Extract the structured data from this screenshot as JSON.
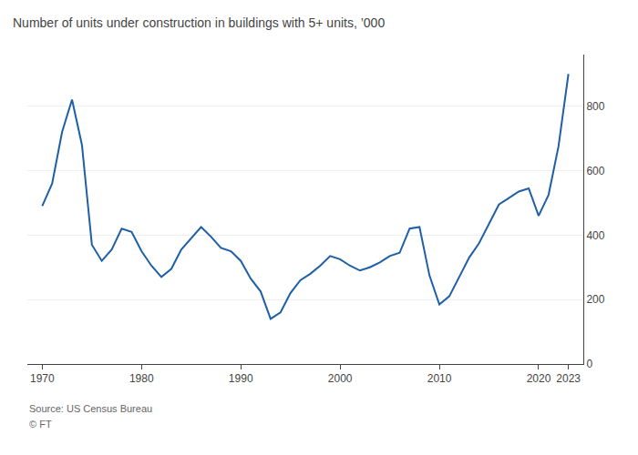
{
  "chart_data": {
    "type": "line",
    "title": "Number of units under construction in buildings with 5+ units, ’000",
    "annotations": [
      "Source: US Census Bureau",
      "© FT"
    ],
    "x": [
      1970,
      1971,
      1972,
      1973,
      1974,
      1975,
      1976,
      1977,
      1978,
      1979,
      1980,
      1981,
      1982,
      1983,
      1984,
      1985,
      1986,
      1987,
      1988,
      1989,
      1990,
      1991,
      1992,
      1993,
      1994,
      1995,
      1996,
      1997,
      1998,
      1999,
      2000,
      2001,
      2002,
      2003,
      2004,
      2005,
      2006,
      2007,
      2008,
      2009,
      2010,
      2011,
      2012,
      2013,
      2014,
      2015,
      2016,
      2017,
      2018,
      2019,
      2020,
      2021,
      2022,
      2023
    ],
    "values": [
      490,
      560,
      720,
      820,
      680,
      370,
      320,
      355,
      420,
      410,
      350,
      305,
      270,
      295,
      355,
      390,
      425,
      395,
      360,
      350,
      320,
      265,
      225,
      140,
      160,
      220,
      260,
      280,
      305,
      335,
      325,
      305,
      290,
      300,
      315,
      335,
      345,
      420,
      425,
      275,
      185,
      210,
      270,
      330,
      375,
      435,
      495,
      515,
      535,
      545,
      460,
      525,
      675,
      900
    ],
    "color": "#1f5fa6",
    "xlim": [
      1968.5,
      2024.5
    ],
    "xticks": [
      1970,
      1980,
      1990,
      2000,
      2010,
      2020,
      2023
    ],
    "ylim": [
      0,
      960
    ],
    "yticks": [
      0,
      200,
      400,
      600,
      800
    ],
    "grid": true
  }
}
